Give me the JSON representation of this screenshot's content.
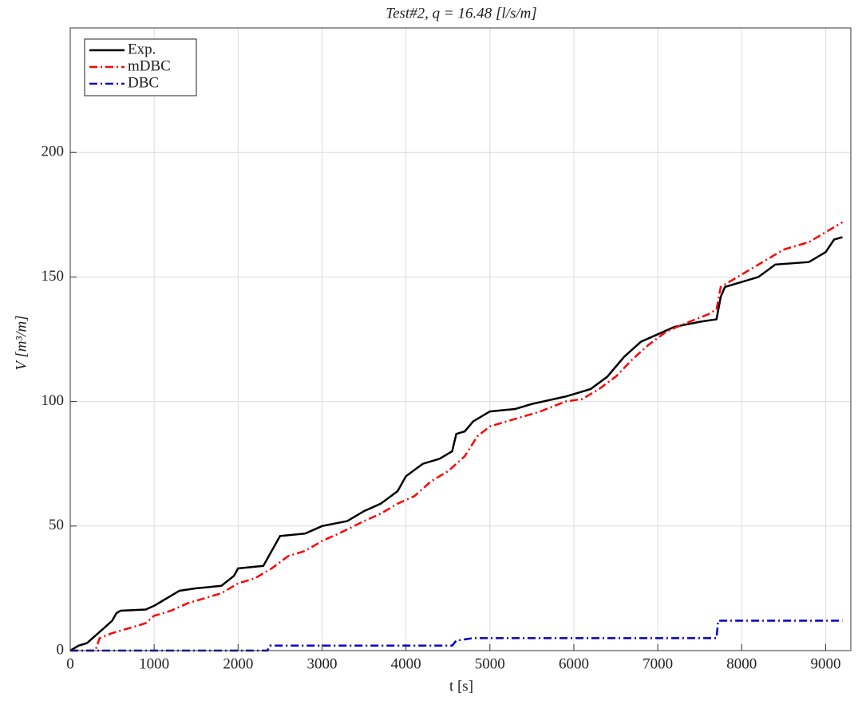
{
  "chart_data": {
    "type": "line",
    "title": "Test#2,  q = 16.48 [l/s/m]",
    "xlabel": "t [s]",
    "ylabel": "V [m³/m]",
    "xlim": [
      0,
      9300
    ],
    "ylim": [
      0,
      250
    ],
    "xticks": [
      0,
      1000,
      2000,
      3000,
      4000,
      5000,
      6000,
      7000,
      8000,
      9000
    ],
    "yticks": [
      0,
      50,
      100,
      150,
      200
    ],
    "grid": true,
    "legend": "upper-left",
    "series": [
      {
        "name": "Exp.",
        "color": "#000000",
        "linestyle": "solid",
        "x": [
          0,
          100,
          200,
          300,
          400,
          500,
          550,
          600,
          900,
          1000,
          1100,
          1200,
          1300,
          1500,
          1800,
          1950,
          2000,
          2300,
          2400,
          2500,
          2800,
          3000,
          3300,
          3500,
          3700,
          3900,
          4000,
          4200,
          4400,
          4550,
          4600,
          4700,
          4800,
          5000,
          5300,
          5500,
          5900,
          6200,
          6400,
          6600,
          6800,
          7000,
          7200,
          7500,
          7700,
          7750,
          7800,
          8200,
          8400,
          8800,
          9000,
          9100,
          9200
        ],
        "values": [
          0,
          2,
          3,
          6,
          9,
          12,
          15,
          16,
          16.5,
          18,
          20,
          22,
          24,
          25,
          26,
          30,
          33,
          34,
          40,
          46,
          47,
          50,
          52,
          56,
          59,
          64,
          70,
          75,
          77,
          80,
          87,
          88,
          92,
          96,
          97,
          99,
          102,
          105,
          110,
          118,
          124,
          127,
          130,
          132,
          133,
          142,
          146,
          150,
          155,
          156,
          160,
          165,
          166
        ]
      },
      {
        "name": "mDBC",
        "color": "#ff0000",
        "linestyle": "dashdot",
        "x": [
          0,
          300,
          350,
          500,
          700,
          800,
          900,
          1000,
          1200,
          1400,
          1600,
          1800,
          2000,
          2200,
          2400,
          2600,
          2800,
          3000,
          3200,
          3500,
          3700,
          3900,
          4100,
          4300,
          4500,
          4700,
          4850,
          5000,
          5200,
          5600,
          5900,
          6100,
          6300,
          6500,
          6700,
          6900,
          7100,
          7300,
          7600,
          7700,
          7750,
          7900,
          8200,
          8500,
          8800,
          9000,
          9200
        ],
        "values": [
          0,
          0,
          5,
          7,
          9,
          10,
          11,
          14,
          16,
          19,
          21,
          23,
          27,
          29,
          33,
          38,
          40,
          44,
          47,
          52,
          55,
          59,
          62,
          68,
          72,
          78,
          86,
          90,
          92,
          96,
          100,
          101,
          105,
          110,
          117,
          123,
          128,
          131,
          135,
          137,
          146,
          149,
          155,
          161,
          164,
          168,
          172
        ]
      },
      {
        "name": "DBC",
        "color": "#0000cc",
        "linestyle": "dashdot",
        "x": [
          0,
          2350,
          2380,
          4550,
          4600,
          4800,
          7700,
          7720,
          9200
        ],
        "values": [
          0,
          0,
          2,
          2,
          4,
          5,
          5,
          12,
          12
        ]
      }
    ]
  }
}
